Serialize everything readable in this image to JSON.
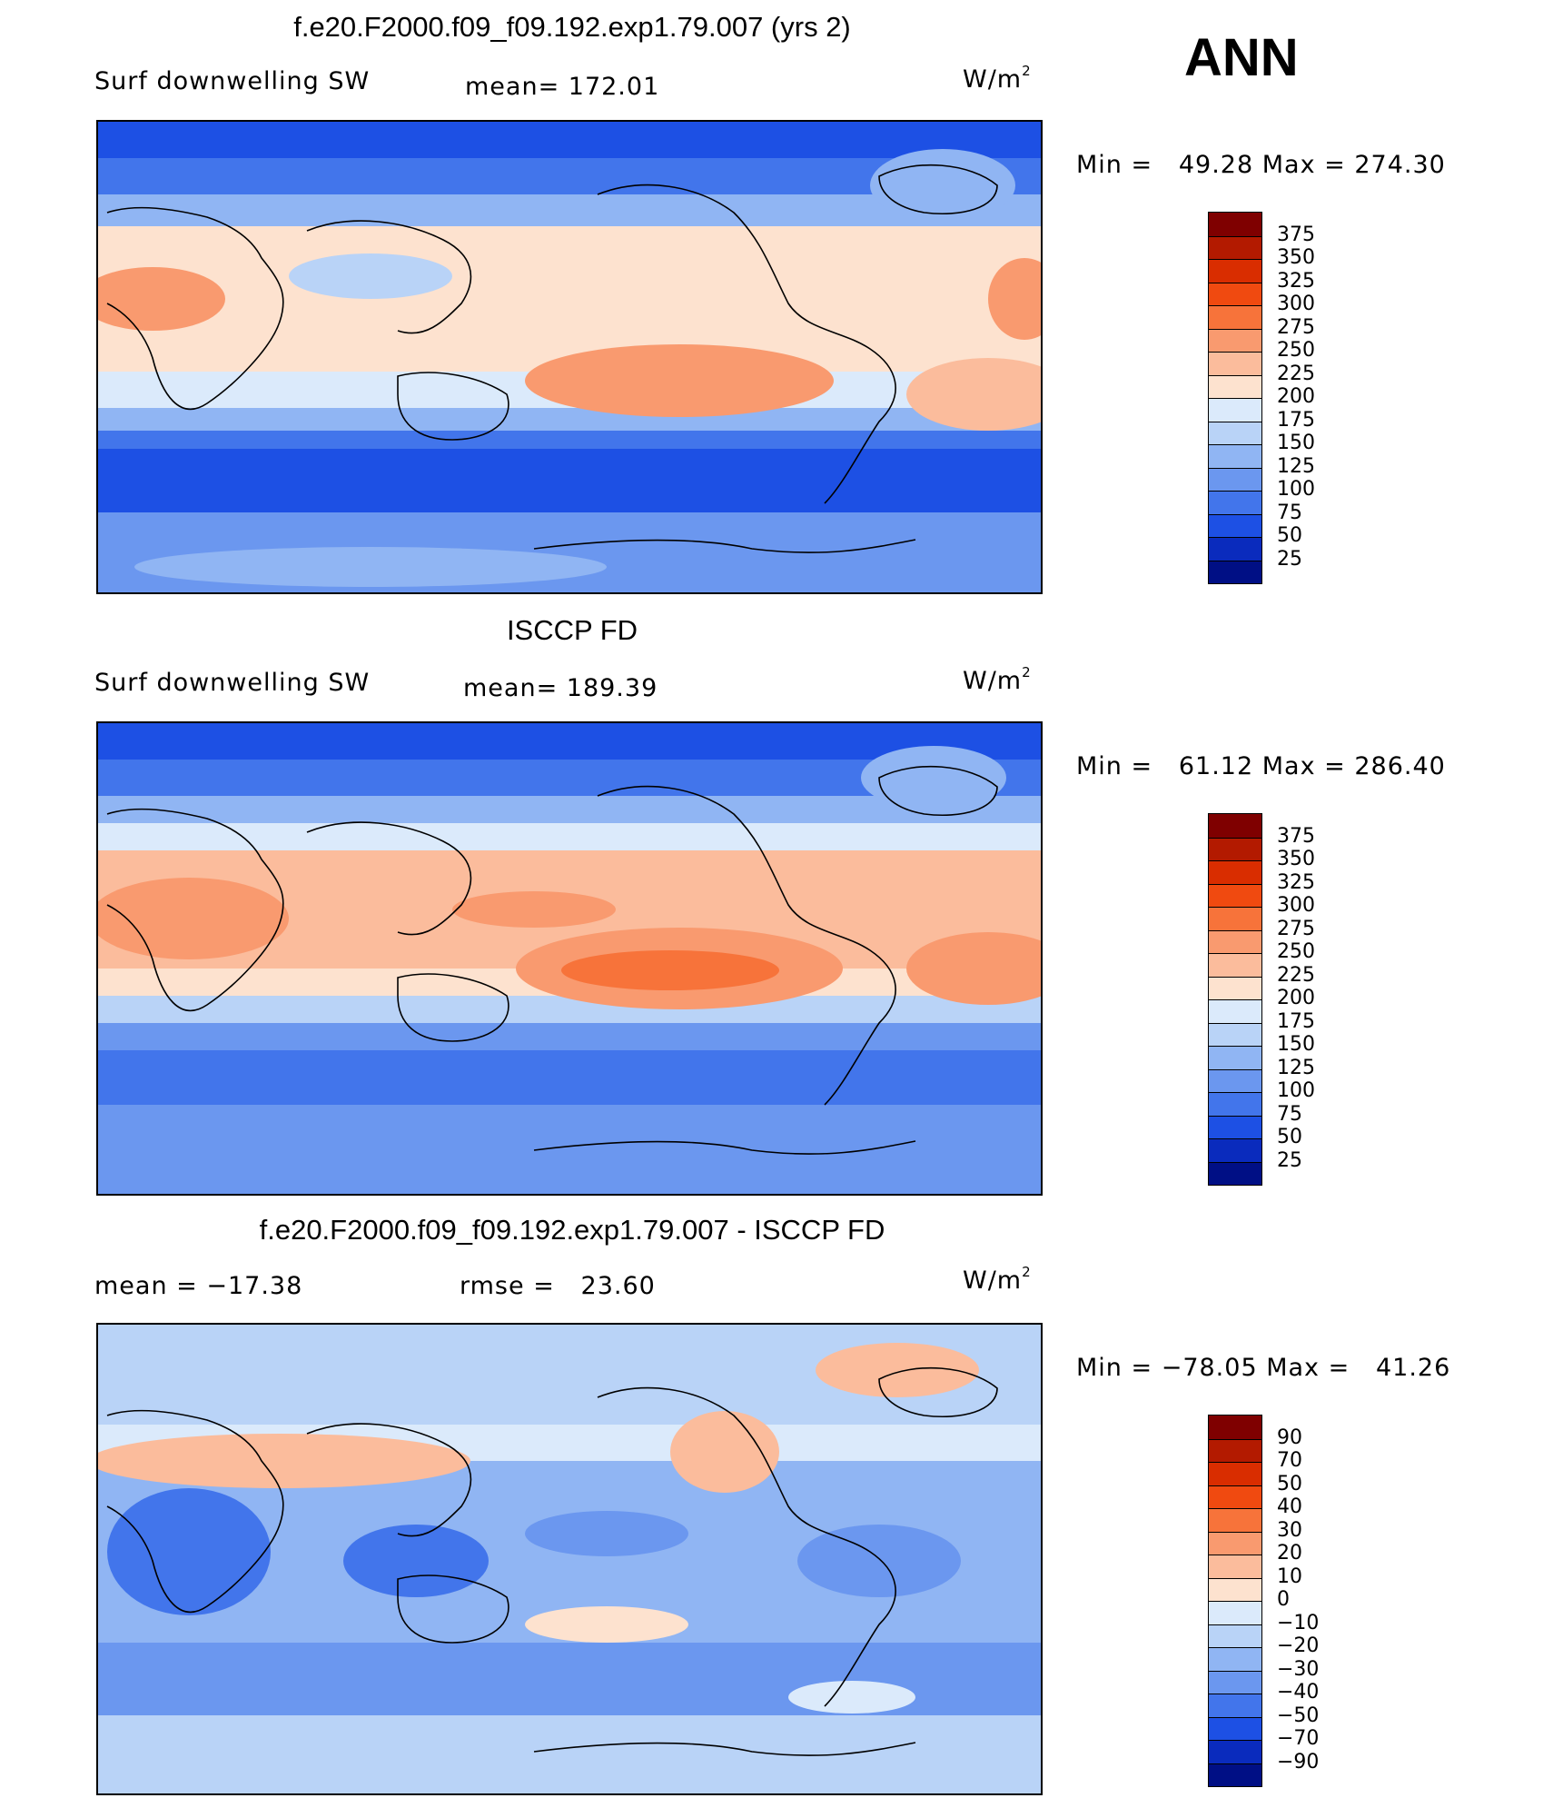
{
  "season_label": "ANN",
  "panels": [
    {
      "title": "f.e20.F2000.f09_f09.192.exp1.79.007 (yrs 2)",
      "left_label": "Surf downwelling SW",
      "center_label": "mean= 172.01",
      "units": "W/m",
      "units_sup": "2",
      "minmax": "Min =   49.28 Max = 274.30",
      "colorbar_ticks": [
        "375",
        "350",
        "325",
        "300",
        "275",
        "250",
        "225",
        "200",
        "175",
        "150",
        "125",
        "100",
        "75",
        "50",
        "25"
      ],
      "colorbar_colors": [
        "#7f0000",
        "#b31a00",
        "#d92d00",
        "#f04a10",
        "#f7733a",
        "#f99a6f",
        "#fbbc9c",
        "#fde2cf",
        "#dbeafb",
        "#b9d3f7",
        "#90b5f3",
        "#6b97ef",
        "#4275eb",
        "#1d50e4",
        "#0a2bbd",
        "#000f85"
      ]
    },
    {
      "title": "ISCCP FD",
      "left_label": "Surf downwelling SW",
      "center_label": "mean= 189.39",
      "units": "W/m",
      "units_sup": "2",
      "minmax": "Min =   61.12 Max = 286.40",
      "colorbar_ticks": [
        "375",
        "350",
        "325",
        "300",
        "275",
        "250",
        "225",
        "200",
        "175",
        "150",
        "125",
        "100",
        "75",
        "50",
        "25"
      ],
      "colorbar_colors": [
        "#7f0000",
        "#b31a00",
        "#d92d00",
        "#f04a10",
        "#f7733a",
        "#f99a6f",
        "#fbbc9c",
        "#fde2cf",
        "#dbeafb",
        "#b9d3f7",
        "#90b5f3",
        "#6b97ef",
        "#4275eb",
        "#1d50e4",
        "#0a2bbd",
        "#000f85"
      ]
    },
    {
      "title": "f.e20.F2000.f09_f09.192.exp1.79.007 - ISCCP FD",
      "left_label": "mean = −17.38",
      "center_label": "rmse =   23.60",
      "units": "W/m",
      "units_sup": "2",
      "minmax": "Min = −78.05 Max =   41.26",
      "colorbar_ticks": [
        "90",
        "70",
        "50",
        "40",
        "30",
        "20",
        "10",
        "0",
        "−10",
        "−20",
        "−30",
        "−40",
        "−50",
        "−70",
        "−90"
      ],
      "colorbar_colors": [
        "#7f0000",
        "#b31a00",
        "#d92d00",
        "#f04a10",
        "#f7733a",
        "#f99a6f",
        "#fbbc9c",
        "#fde2cf",
        "#dbeafb",
        "#b9d3f7",
        "#90b5f3",
        "#6b97ef",
        "#4275eb",
        "#1d50e4",
        "#0a2bbd",
        "#000f85"
      ]
    }
  ]
}
